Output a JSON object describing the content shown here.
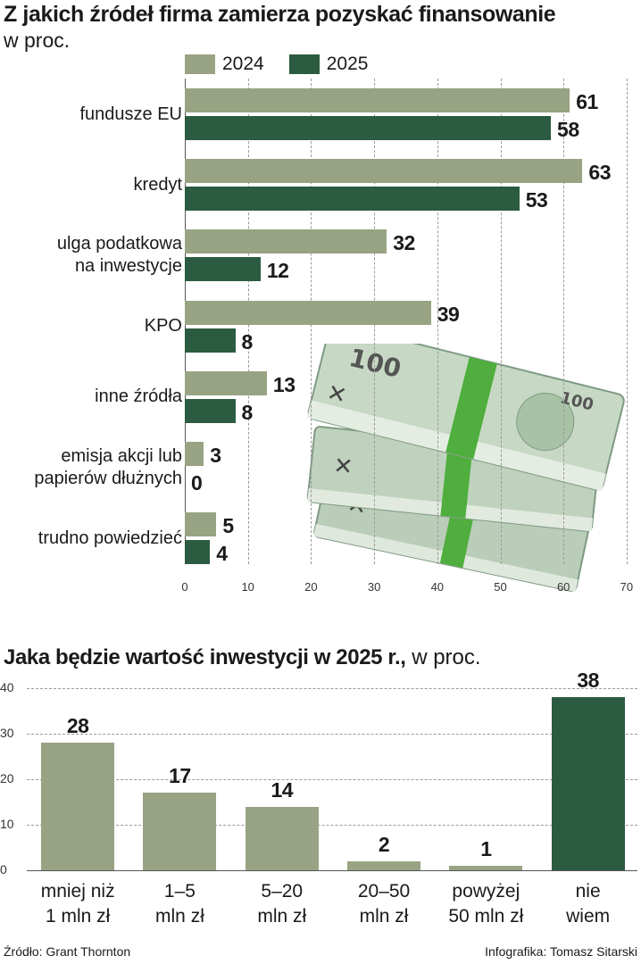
{
  "header": {
    "title": "Z jakich źródeł firma zamierza pozyskać finansowanie",
    "subtitle": "w proc."
  },
  "colors": {
    "light": "#98a383",
    "dark": "#2b5b40"
  },
  "chart_data": [
    {
      "type": "bar",
      "orientation": "horizontal",
      "title": "Z jakich źródeł firma zamierza pozyskać finansowanie",
      "unit": "w proc.",
      "categories": [
        [
          "fundusze EU"
        ],
        [
          "kredyt"
        ],
        [
          "ulga podatkowa",
          "na inwestycje"
        ],
        [
          "KPO"
        ],
        [
          "inne źródła"
        ],
        [
          "emisja akcji lub",
          "papierów dłużnych"
        ],
        [
          "trudno powiedzieć"
        ]
      ],
      "series": [
        {
          "name": "2024",
          "values": [
            61,
            63,
            32,
            39,
            13,
            3,
            5
          ],
          "value_labels": [
            "61",
            "63",
            "32",
            "39",
            "13",
            "3",
            "5"
          ]
        },
        {
          "name": "2025",
          "values": [
            58,
            53,
            12,
            8,
            8,
            0,
            4
          ],
          "value_labels": [
            "58",
            "53",
            "12",
            "8",
            "8",
            "0",
            "4"
          ]
        }
      ],
      "xlim": [
        0,
        70
      ],
      "xticks": [
        "0",
        "10",
        "20",
        "30",
        "40",
        "50",
        "60",
        "70"
      ],
      "grid": "vertical",
      "legend": "top"
    },
    {
      "type": "bar",
      "orientation": "vertical",
      "title": "Jaka będzie  wartość inwestycji w 2025 r.,",
      "unit": "w proc.",
      "categories": [
        [
          "mniej niż",
          "1 mln zł"
        ],
        [
          "1–5",
          "mln zł"
        ],
        [
          "5–20",
          "mln zł"
        ],
        [
          "20–50",
          "mln zł"
        ],
        [
          "powyżej",
          "50 mln zł"
        ],
        [
          "nie",
          "wiem"
        ]
      ],
      "values": [
        28,
        17,
        14,
        2,
        1,
        38
      ],
      "value_labels": [
        "28",
        "17",
        "14",
        "2",
        "1",
        "38"
      ],
      "highlight_index": 5,
      "ylim": [
        0,
        40
      ],
      "yticks": [
        "0",
        "10",
        "20",
        "30",
        "40"
      ],
      "grid": "horizontal"
    }
  ],
  "footer": {
    "source": "Źródło: Grant Thornton",
    "credit": "Infografika: Tomasz Sitarski"
  },
  "illustration": {
    "icon": "banknote-stack-icon"
  }
}
